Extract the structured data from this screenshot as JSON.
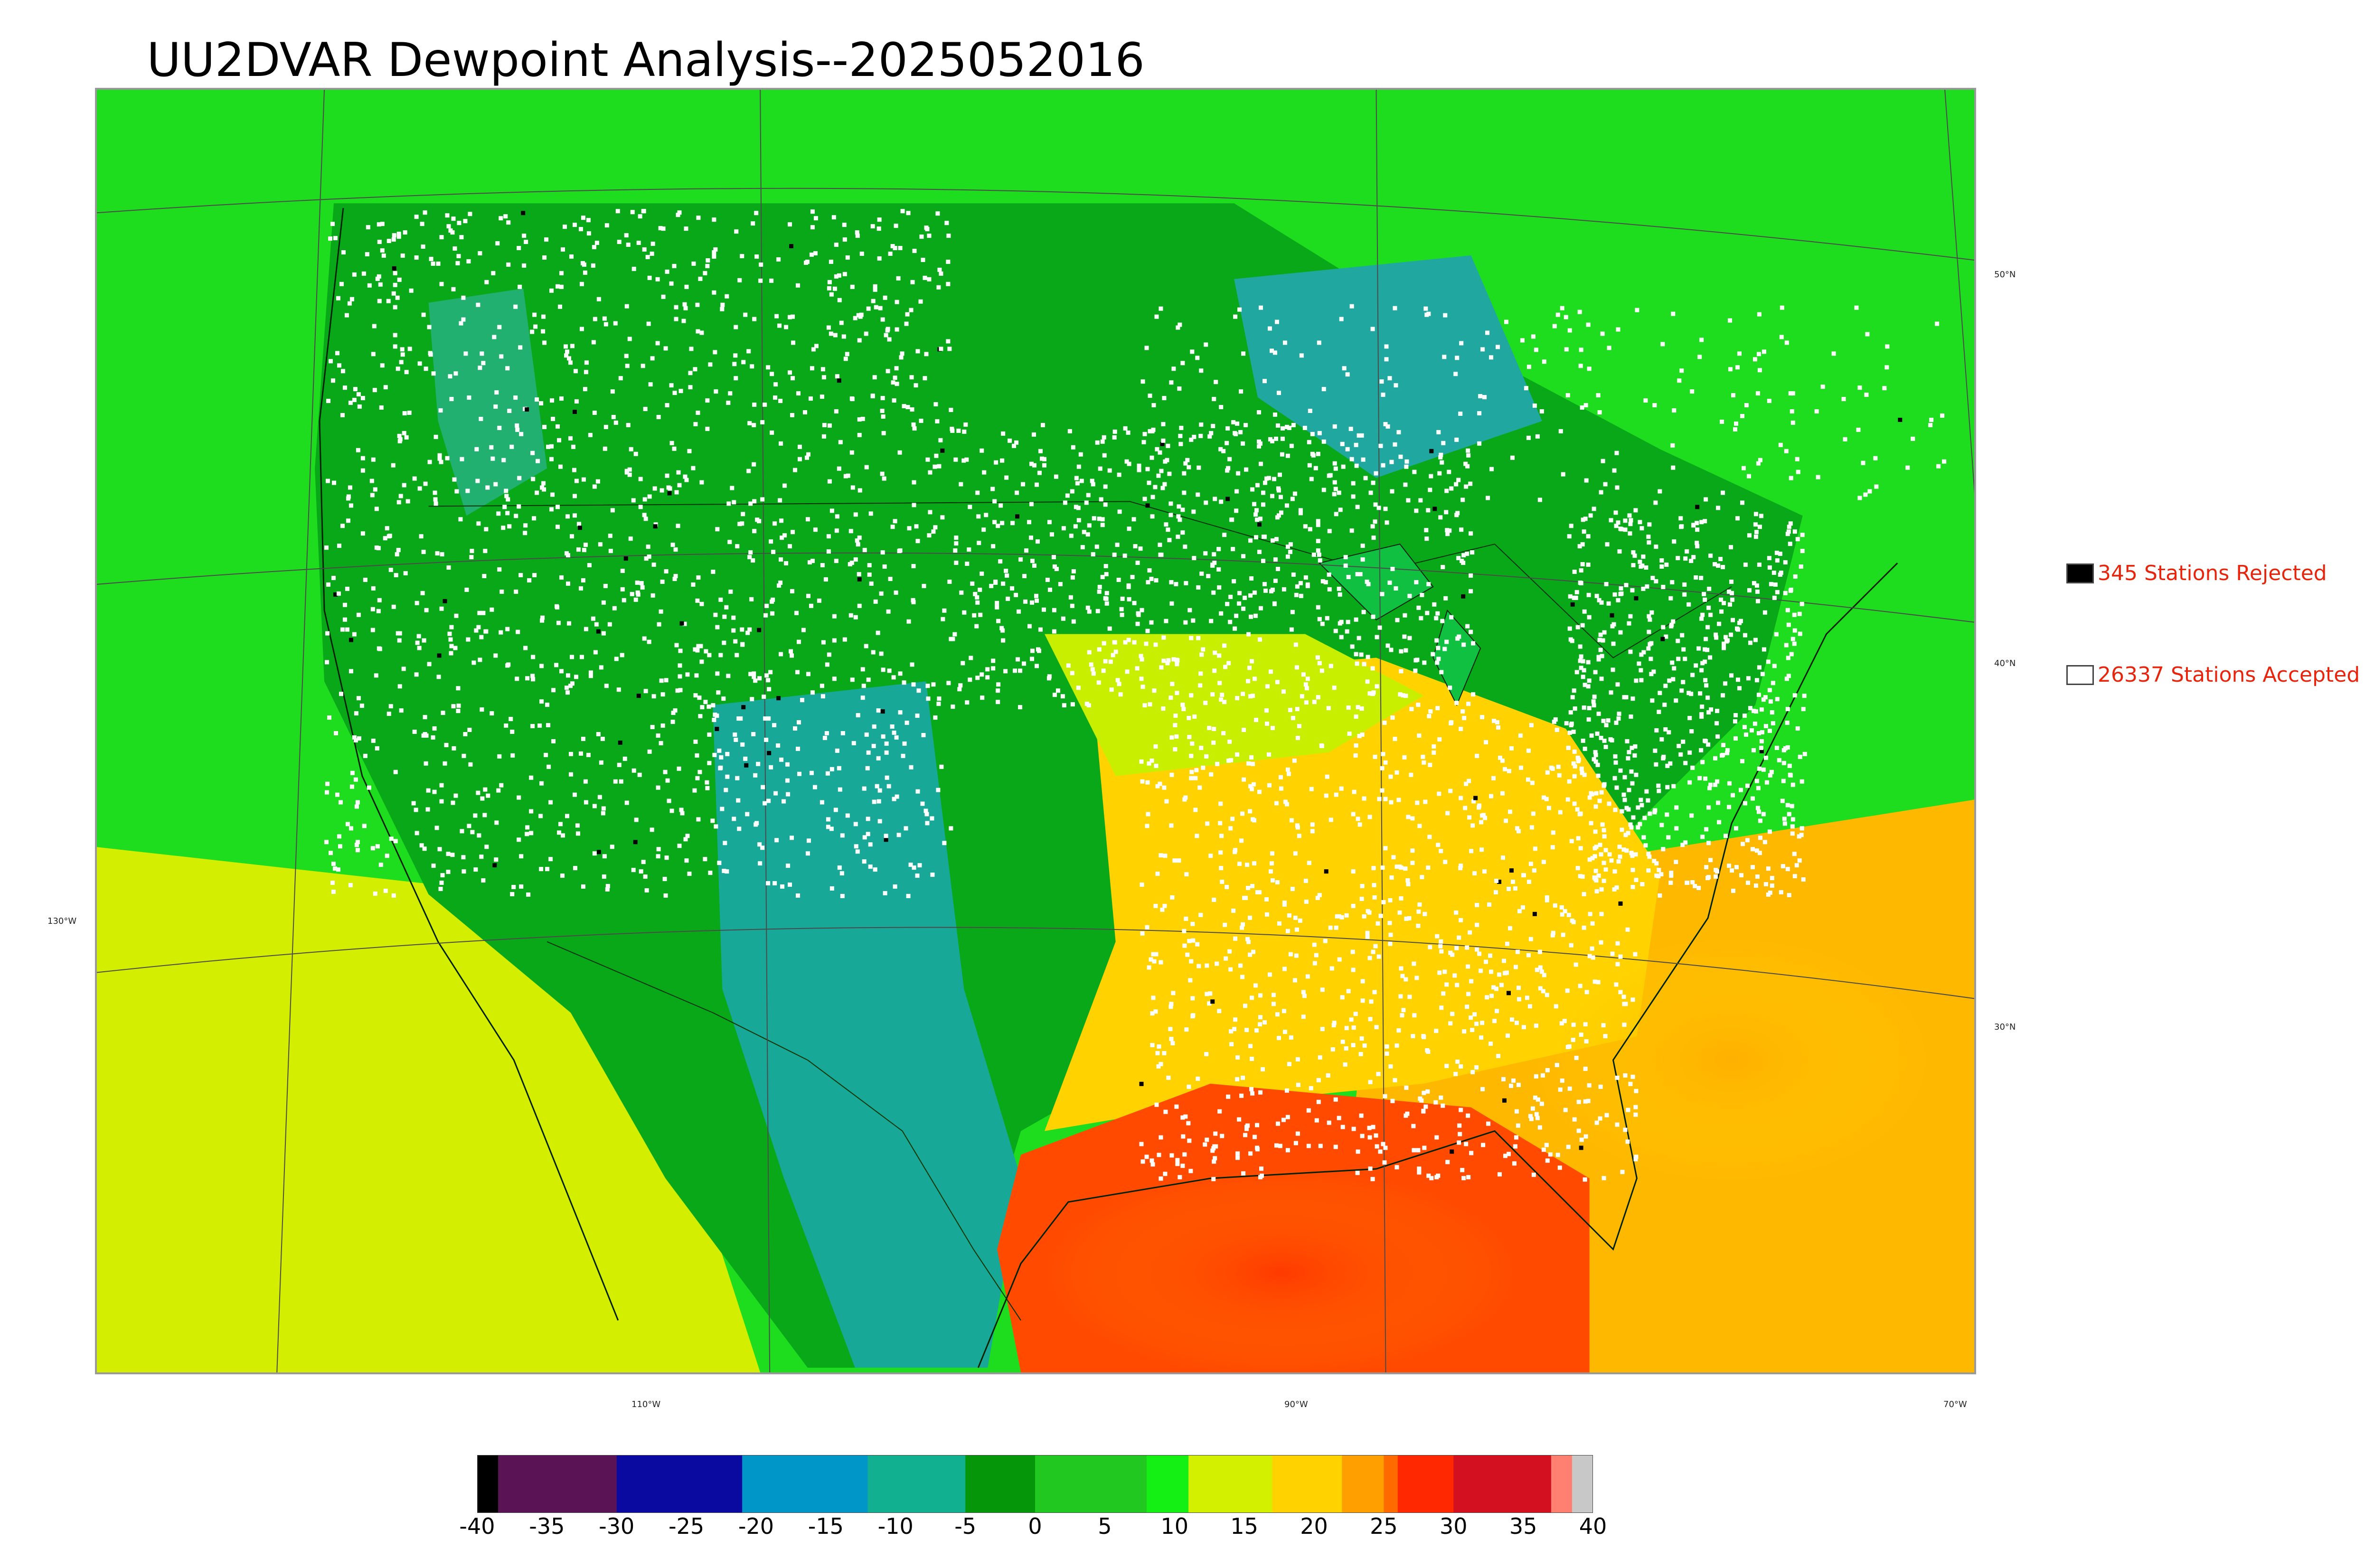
{
  "title": "UU2DVAR Dewpoint Analysis--2025052016",
  "legend": {
    "rejected": {
      "label": "345 Stations Rejected",
      "swatch_color": "#000000"
    },
    "accepted": {
      "label": "26337 Stations Accepted",
      "swatch_color": "#ffffff"
    },
    "text_color": "#e8250c"
  },
  "lat_labels": [
    "50°N",
    "40°N",
    "30°N"
  ],
  "lon_labels": [
    "130°W",
    "110°W",
    "90°W",
    "70°W"
  ],
  "colorbar": {
    "min": -40,
    "max": 40,
    "ticks": [
      "-40",
      "-35",
      "-30",
      "-25",
      "-20",
      "-15",
      "-10",
      "-5",
      "0",
      "5",
      "10",
      "15",
      "20",
      "25",
      "30",
      "35",
      "40"
    ],
    "segments": [
      {
        "from": -40,
        "to": -38.5,
        "color": "#000000"
      },
      {
        "from": -38.5,
        "to": -30,
        "color": "#5a1456"
      },
      {
        "from": -30,
        "to": -21,
        "color": "#0a0aa0"
      },
      {
        "from": -21,
        "to": -12,
        "color": "#0096c8"
      },
      {
        "from": -12,
        "to": -5,
        "color": "#10b090"
      },
      {
        "from": -5,
        "to": 0,
        "color": "#05960a"
      },
      {
        "from": 0,
        "to": 8,
        "color": "#20c820"
      },
      {
        "from": 8,
        "to": 11,
        "color": "#14f014"
      },
      {
        "from": 11,
        "to": 17,
        "color": "#d2f000"
      },
      {
        "from": 17,
        "to": 22,
        "color": "#ffd200"
      },
      {
        "from": 22,
        "to": 25,
        "color": "#ffa000"
      },
      {
        "from": 25,
        "to": 26,
        "color": "#ff6a00"
      },
      {
        "from": 26,
        "to": 30,
        "color": "#ff2800"
      },
      {
        "from": 30,
        "to": 37,
        "color": "#d21020"
      },
      {
        "from": 37,
        "to": 38.5,
        "color": "#ff8070"
      },
      {
        "from": 38.5,
        "to": 40,
        "color": "#c8c8c8"
      }
    ]
  }
}
